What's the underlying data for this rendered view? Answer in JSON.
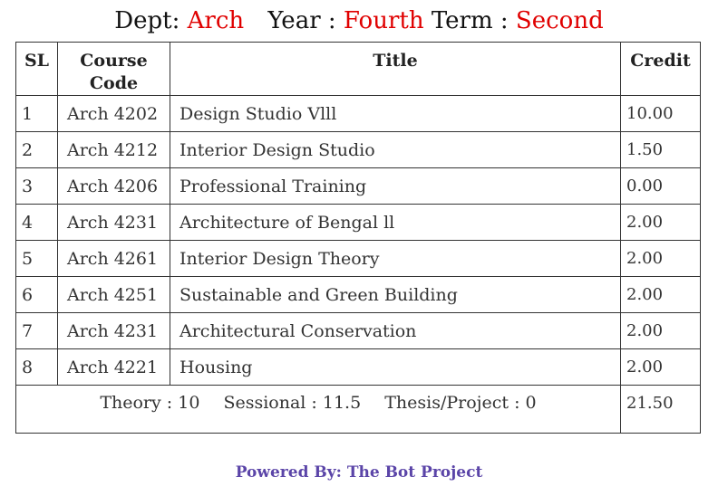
{
  "header": {
    "dept_label": "Dept:",
    "dept_value": "Arch",
    "year_label": "Year :",
    "year_value": "Fourth",
    "term_label": "Term :",
    "term_value": "Second"
  },
  "table": {
    "columns": {
      "sl": "SL",
      "code_line1": "Course",
      "code_line2": "Code",
      "title": "Title",
      "credit": "Credit"
    },
    "rows": [
      {
        "sl": "1",
        "code": "Arch 4202",
        "title": "Design Studio Vlll",
        "credit": "10.00"
      },
      {
        "sl": "2",
        "code": "Arch 4212",
        "title": "Interior Design Studio",
        "credit": "1.50"
      },
      {
        "sl": "3",
        "code": "Arch 4206",
        "title": "Professional Training",
        "credit": "0.00"
      },
      {
        "sl": "4",
        "code": "Arch 4231",
        "title": "Architecture of Bengal ll",
        "credit": "2.00"
      },
      {
        "sl": "5",
        "code": "Arch 4261",
        "title": "Interior Design Theory",
        "credit": "2.00"
      },
      {
        "sl": "6",
        "code": "Arch 4251",
        "title": "Sustainable and Green Building",
        "credit": "2.00"
      },
      {
        "sl": "7",
        "code": "Arch 4231",
        "title": "Architectural Conservation",
        "credit": "2.00"
      },
      {
        "sl": "8",
        "code": "Arch 4221",
        "title": "Housing",
        "credit": "2.00"
      }
    ],
    "summary": {
      "theory": "Theory : 10",
      "sessional": "Sessional : 11.5",
      "thesis": "Thesis/Project : 0",
      "total_credit": "21.50"
    }
  },
  "footer": {
    "text": "Powered By: The Bot Project"
  },
  "colors": {
    "header_value": "#e00000",
    "footer": "#5b45a8",
    "border": "#333333"
  }
}
